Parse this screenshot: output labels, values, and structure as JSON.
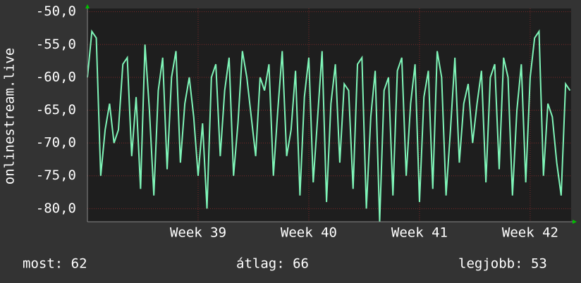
{
  "chart_data": {
    "type": "line",
    "y_label": "onlinestream.live",
    "x": [
      38,
      38.04,
      38.08,
      38.12,
      38.16,
      38.2,
      38.24,
      38.28,
      38.32,
      38.36,
      38.4,
      38.44,
      38.48,
      38.52,
      38.56,
      38.6,
      38.64,
      38.68,
      38.72,
      38.76,
      38.8,
      38.84,
      38.88,
      38.92,
      38.96,
      39,
      39.04,
      39.08,
      39.12,
      39.16,
      39.2,
      39.24,
      39.28,
      39.32,
      39.36,
      39.4,
      39.44,
      39.48,
      39.52,
      39.56,
      39.6,
      39.64,
      39.68,
      39.72,
      39.76,
      39.8,
      39.84,
      39.88,
      39.92,
      39.96,
      40,
      40.04,
      40.08,
      40.12,
      40.16,
      40.2,
      40.24,
      40.28,
      40.32,
      40.36,
      40.4,
      40.44,
      40.48,
      40.52,
      40.56,
      40.6,
      40.64,
      40.68,
      40.72,
      40.76,
      40.8,
      40.84,
      40.88,
      40.92,
      40.96,
      41,
      41.04,
      41.08,
      41.12,
      41.16,
      41.2,
      41.24,
      41.28,
      41.32,
      41.36,
      41.4,
      41.44,
      41.48,
      41.52,
      41.56,
      41.6,
      41.64,
      41.68,
      41.72,
      41.76,
      41.8,
      41.84,
      41.88,
      41.92,
      41.96,
      42,
      42.04,
      42.08,
      42.12,
      42.16,
      42.2,
      42.24,
      42.28,
      42.32,
      42.36
    ],
    "values": [
      -60,
      -53,
      -54,
      -75,
      -68,
      -64,
      -70,
      -68,
      -58,
      -57,
      -72,
      -63,
      -77,
      -55,
      -65,
      -78,
      -62,
      -57,
      -74,
      -60,
      -56,
      -73,
      -64,
      -60,
      -66,
      -75,
      -67,
      -80,
      -60,
      -58,
      -72,
      -62,
      -57,
      -75,
      -67,
      -56,
      -60,
      -66,
      -72,
      -60,
      -62,
      -58,
      -75,
      -65,
      -56,
      -72,
      -68,
      -59,
      -78,
      -63,
      -57,
      -76,
      -66,
      -56,
      -79,
      -64,
      -58,
      -73,
      -61,
      -62,
      -77,
      -58,
      -57,
      -80,
      -66,
      -59,
      -82,
      -62,
      -60,
      -78,
      -59,
      -57,
      -75,
      -64,
      -58,
      -79,
      -63,
      -59,
      -77,
      -56,
      -60,
      -78,
      -68,
      -57,
      -73,
      -64,
      -61,
      -70,
      -64,
      -59,
      -76,
      -60,
      -58,
      -74,
      -57,
      -60,
      -78,
      -65,
      -58,
      -76,
      -60,
      -54,
      -53,
      -75,
      -64,
      -66,
      -73,
      -78,
      -61,
      -62
    ],
    "color": "#7ff5b8",
    "xlim": [
      38,
      42.37
    ],
    "xticks": [
      {
        "value": 39,
        "label": "Week 39"
      },
      {
        "value": 40,
        "label": "Week 40"
      },
      {
        "value": 41,
        "label": "Week 41"
      },
      {
        "value": 42,
        "label": "Week 42"
      }
    ],
    "ylim": [
      -82,
      -49.5
    ],
    "yticks": [
      {
        "value": -50,
        "label": "-50,0"
      },
      {
        "value": -55,
        "label": "-55,0"
      },
      {
        "value": -60,
        "label": "-60,0"
      },
      {
        "value": -65,
        "label": "-65,0"
      },
      {
        "value": -70,
        "label": "-70,0"
      },
      {
        "value": -75,
        "label": "-75,0"
      },
      {
        "value": -80,
        "label": "-80,0"
      }
    ],
    "grid": true,
    "footer": [
      "most: 62",
      "átlag: 66",
      "legjobb: 53"
    ]
  }
}
